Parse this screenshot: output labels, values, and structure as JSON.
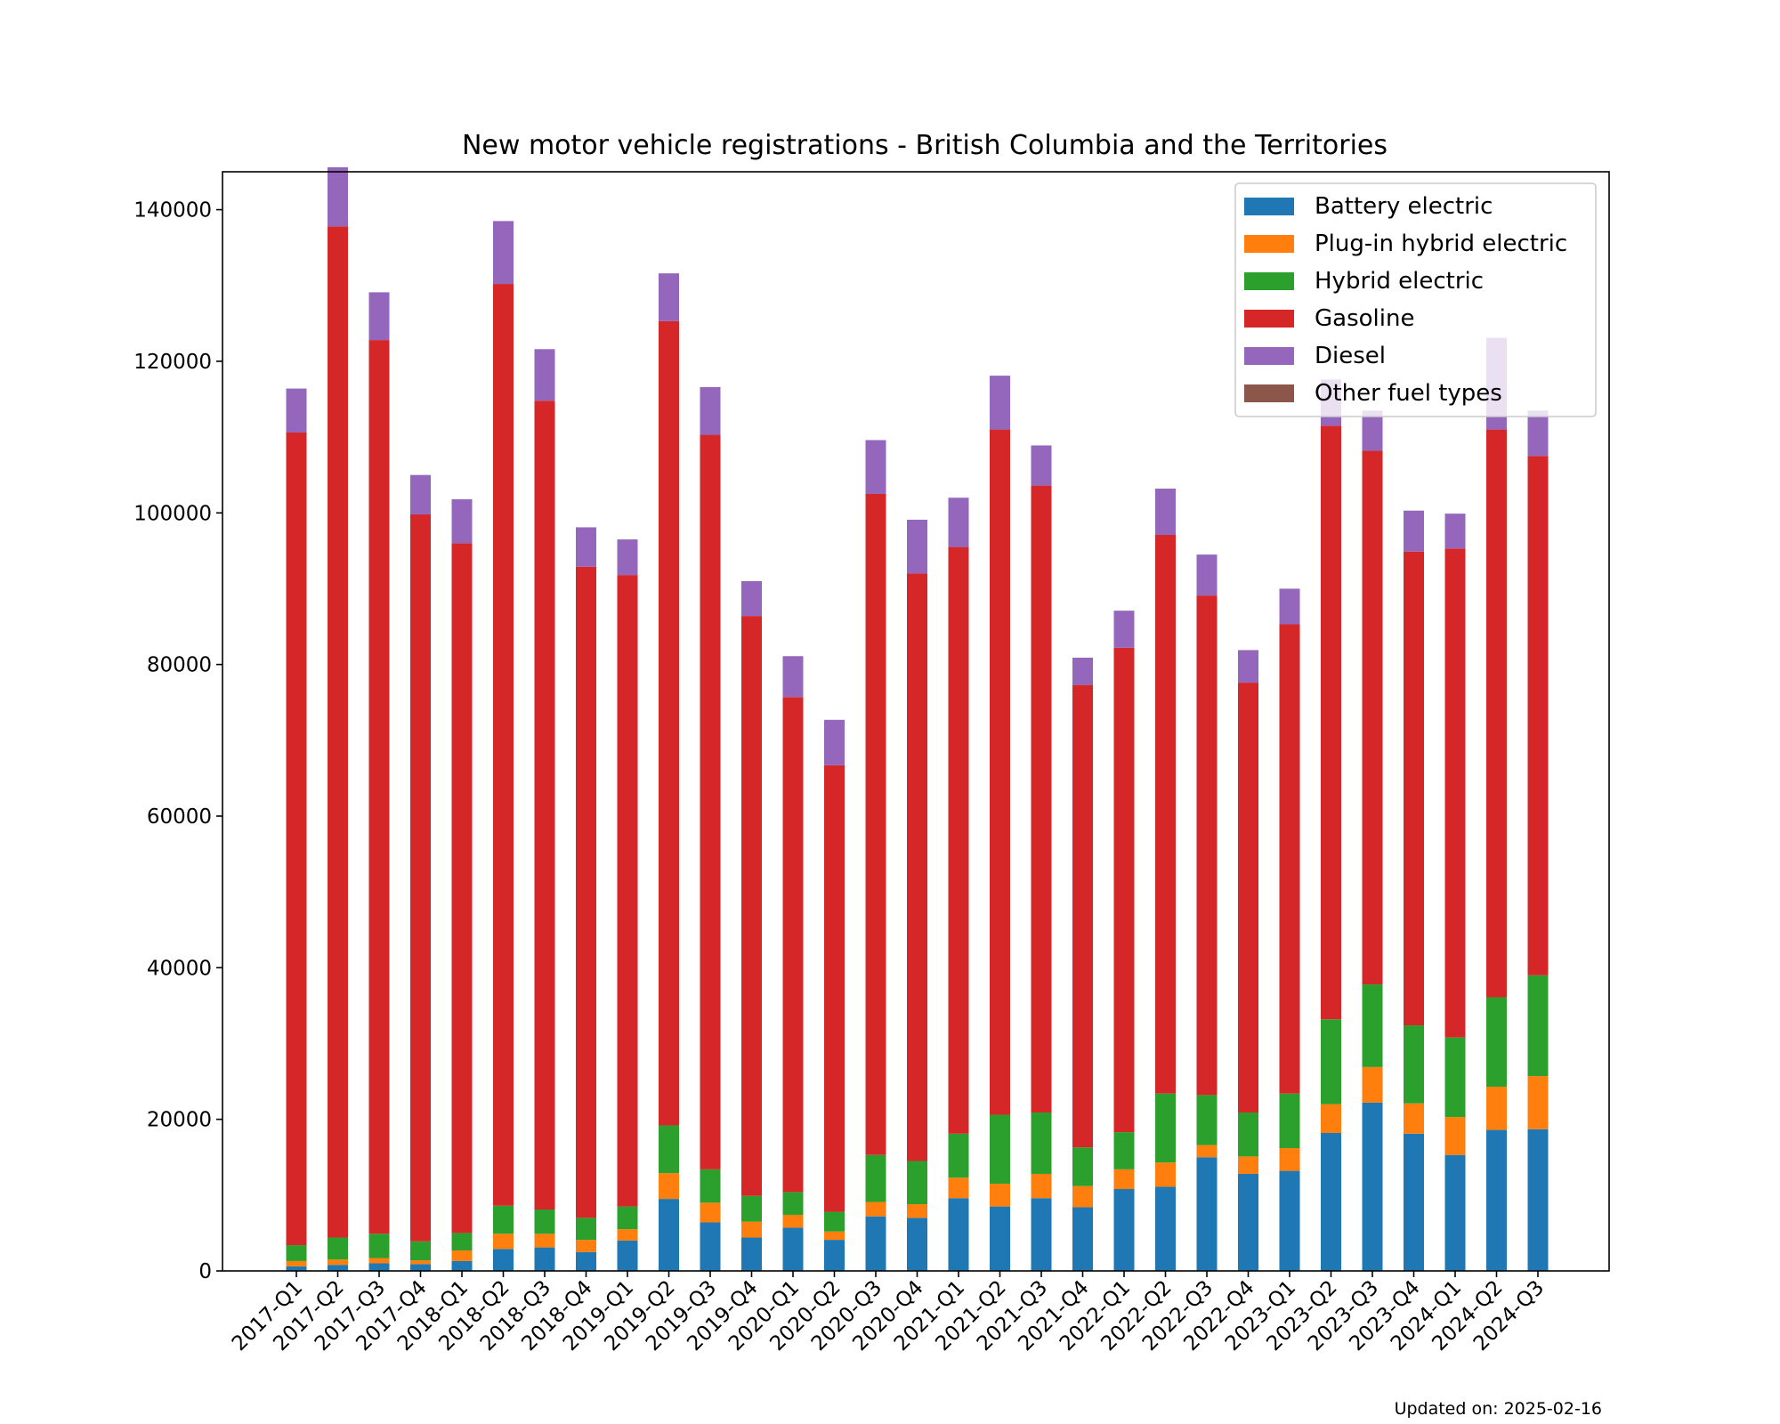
{
  "chart_data": {
    "type": "bar",
    "stacked": true,
    "title": "New motor vehicle registrations - British Columbia and the Territories",
    "xlabel": "",
    "ylabel": "",
    "ylim": [
      0,
      145000
    ],
    "yticks": [
      0,
      20000,
      40000,
      60000,
      80000,
      100000,
      120000,
      140000
    ],
    "ytick_labels": [
      "0",
      "20000",
      "40000",
      "60000",
      "80000",
      "100000",
      "120000",
      "140000"
    ],
    "grid": false,
    "legend_position": "top-right",
    "categories": [
      "2017-Q1",
      "2017-Q2",
      "2017-Q3",
      "2017-Q4",
      "2018-Q1",
      "2018-Q2",
      "2018-Q3",
      "2018-Q4",
      "2019-Q1",
      "2019-Q2",
      "2019-Q3",
      "2019-Q4",
      "2020-Q1",
      "2020-Q2",
      "2020-Q3",
      "2020-Q4",
      "2021-Q1",
      "2021-Q2",
      "2021-Q3",
      "2021-Q4",
      "2022-Q1",
      "2022-Q2",
      "2022-Q3",
      "2022-Q4",
      "2023-Q1",
      "2023-Q2",
      "2023-Q3",
      "2023-Q4",
      "2024-Q1",
      "2024-Q2",
      "2024-Q3"
    ],
    "series": [
      {
        "name": "Battery electric",
        "color": "#1f77b4",
        "values": [
          600,
          800,
          1000,
          900,
          1300,
          2900,
          3100,
          2500,
          4000,
          9500,
          6400,
          4400,
          5700,
          4100,
          7200,
          7000,
          9600,
          8500,
          9600,
          8400,
          10800,
          11100,
          15000,
          12800,
          13200,
          18200,
          22200,
          18100,
          15300,
          18600,
          18700
        ]
      },
      {
        "name": "Plug-in hybrid electric",
        "color": "#ff7f0e",
        "values": [
          700,
          700,
          700,
          500,
          1400,
          2000,
          1800,
          1600,
          1500,
          3400,
          2600,
          2100,
          1700,
          1100,
          1900,
          1800,
          2700,
          3000,
          3200,
          2800,
          2600,
          3200,
          1600,
          2300,
          3000,
          3800,
          4700,
          4000,
          5000,
          5700,
          7000
        ]
      },
      {
        "name": "Hybrid electric",
        "color": "#2ca02c",
        "values": [
          2100,
          2900,
          3200,
          2500,
          2300,
          3700,
          3200,
          2900,
          3000,
          6300,
          4400,
          3400,
          3000,
          2600,
          6200,
          5700,
          5800,
          9100,
          8100,
          5100,
          4900,
          9100,
          6600,
          5800,
          7200,
          11200,
          10900,
          10300,
          10500,
          11800,
          13300
        ]
      },
      {
        "name": "Gasoline",
        "color": "#d62728",
        "values": [
          107200,
          133400,
          117900,
          95900,
          91000,
          121600,
          106700,
          85900,
          83300,
          106100,
          96900,
          76500,
          65300,
          58900,
          87200,
          77500,
          77400,
          90400,
          82700,
          61000,
          63900,
          73700,
          65900,
          56700,
          61900,
          78300,
          70400,
          62500,
          64500,
          74900,
          68500
        ]
      },
      {
        "name": "Diesel",
        "color": "#9467bd",
        "values": [
          5800,
          7800,
          6300,
          5200,
          5800,
          8300,
          6800,
          5200,
          4700,
          6300,
          6300,
          4600,
          5400,
          6000,
          7100,
          7100,
          6500,
          7100,
          5300,
          3600,
          4900,
          6100,
          5400,
          4300,
          4700,
          6100,
          5300,
          5400,
          4600,
          12100,
          6000
        ]
      },
      {
        "name": "Other fuel types",
        "color": "#8c564b",
        "values": [
          0,
          0,
          0,
          0,
          0,
          0,
          0,
          0,
          0,
          0,
          0,
          0,
          0,
          0,
          0,
          0,
          0,
          0,
          0,
          0,
          0,
          0,
          0,
          0,
          0,
          0,
          0,
          0,
          0,
          0,
          0
        ]
      }
    ],
    "footnote": "Updated on: 2025-02-16"
  }
}
